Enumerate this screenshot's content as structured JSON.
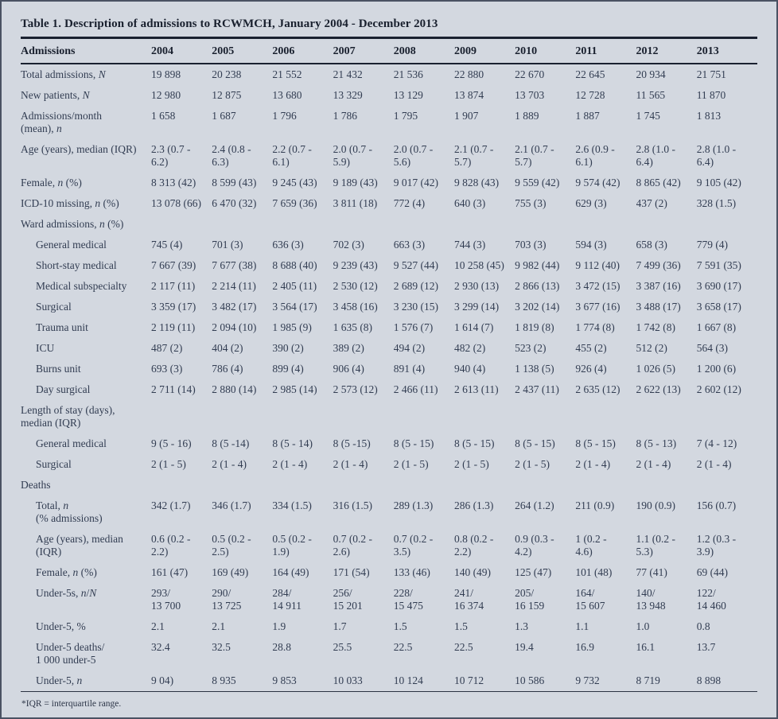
{
  "page": {
    "title": "Table 1. Description of admissions to RCWMCH, January 2004 - December 2013",
    "footnote": "*IQR = interquartile range.",
    "colors": {
      "background": "#d3d8e0",
      "text": "#323d52",
      "rule": "#1a2130"
    }
  },
  "table": {
    "header": [
      "Admissions",
      "2004",
      "2005",
      "2006",
      "2007",
      "2008",
      "2009",
      "2010",
      "2011",
      "2012",
      "2013"
    ],
    "rows": [
      {
        "type": "data",
        "indent": 0,
        "label": "Total admissions, ⟨N⟩",
        "values": [
          "19 898",
          "20 238",
          "21 552",
          "21 432",
          "21 536",
          "22 880",
          "22 670",
          "22 645",
          "20 934",
          "21 751"
        ]
      },
      {
        "type": "data",
        "indent": 0,
        "label": "New patients, ⟨N⟩",
        "values": [
          "12 980",
          "12 875",
          "13 680",
          "13 329",
          "13 129",
          "13 874",
          "13 703",
          "12 728",
          "11 565",
          "11 870"
        ]
      },
      {
        "type": "data",
        "indent": 0,
        "label": "Admissions/month\n(mean), ⟨n⟩",
        "values": [
          "1 658",
          "1 687",
          "1 796",
          "1 786",
          "1 795",
          "1 907",
          "1 889",
          "1 887",
          "1 745",
          "1 813"
        ]
      },
      {
        "type": "data",
        "indent": 0,
        "label": "Age (years), median (IQR)",
        "values": [
          "2.3 (0.7 -\n6.2)",
          "2.4 (0.8 -\n6.3)",
          "2.2 (0.7 -\n6.1)",
          "2.0 (0.7 -\n5.9)",
          "2.0 (0.7 -\n5.6)",
          "2.1 (0.7 -\n5.7)",
          "2.1 (0.7 -\n5.7)",
          "2.6 (0.9 -\n6.1)",
          "2.8 (1.0 -\n6.4)",
          "2.8 (1.0 -\n6.4)"
        ]
      },
      {
        "type": "data",
        "indent": 0,
        "label": "Female, ⟨n⟩ (%)",
        "values": [
          "8 313 (42)",
          "8 599 (43)",
          "9 245 (43)",
          "9 189 (43)",
          "9 017 (42)",
          "9 828 (43)",
          "9 559 (42)",
          "9 574 (42)",
          "8 865 (42)",
          "9 105 (42)"
        ]
      },
      {
        "type": "data",
        "indent": 0,
        "label": "ICD-10 missing, ⟨n⟩ (%)",
        "values": [
          "13 078 (66)",
          "6 470 (32)",
          "7 659 (36)",
          "3 811 (18)",
          "772 (4)",
          "640 (3)",
          "755 (3)",
          "629 (3)",
          "437 (2)",
          "328 (1.5)"
        ]
      },
      {
        "type": "section",
        "indent": 0,
        "label": "Ward admissions, ⟨n⟩ (%)"
      },
      {
        "type": "data",
        "indent": 1,
        "label": "General medical",
        "values": [
          "745 (4)",
          "701 (3)",
          "636 (3)",
          "702 (3)",
          "663 (3)",
          "744 (3)",
          "703 (3)",
          "594 (3)",
          "658 (3)",
          "779 (4)"
        ]
      },
      {
        "type": "data",
        "indent": 1,
        "label": "Short-stay medical",
        "values": [
          "7 667 (39)",
          "7 677 (38)",
          "8 688 (40)",
          "9 239 (43)",
          "9 527 (44)",
          "10 258 (45)",
          "9 982 (44)",
          "9 112 (40)",
          "7 499 (36)",
          "7 591 (35)"
        ]
      },
      {
        "type": "data",
        "indent": 1,
        "label": "Medical subspecialty",
        "values": [
          "2 117 (11)",
          "2 214 (11)",
          "2 405 (11)",
          "2 530 (12)",
          "2 689 (12)",
          "2 930 (13)",
          "2 866 (13)",
          "3 472 (15)",
          "3 387 (16)",
          "3 690 (17)"
        ]
      },
      {
        "type": "data",
        "indent": 1,
        "label": "Surgical",
        "values": [
          "3 359 (17)",
          "3 482 (17)",
          "3 564 (17)",
          "3 458 (16)",
          "3 230 (15)",
          "3 299 (14)",
          "3 202 (14)",
          "3 677 (16)",
          "3 488 (17)",
          "3 658 (17)"
        ]
      },
      {
        "type": "data",
        "indent": 1,
        "label": "Trauma unit",
        "values": [
          "2 119 (11)",
          "2 094 (10)",
          "1 985 (9)",
          "1 635 (8)",
          "1 576 (7)",
          "1 614 (7)",
          "1 819 (8)",
          "1 774 (8)",
          "1 742 (8)",
          "1 667 (8)"
        ]
      },
      {
        "type": "data",
        "indent": 1,
        "label": "ICU",
        "values": [
          "487 (2)",
          "404 (2)",
          "390 (2)",
          "389 (2)",
          "494 (2)",
          "482 (2)",
          "523 (2)",
          "455 (2)",
          "512 (2)",
          "564 (3)"
        ]
      },
      {
        "type": "data",
        "indent": 1,
        "label": "Burns unit",
        "values": [
          "693 (3)",
          "786 (4)",
          "899 (4)",
          "906 (4)",
          "891 (4)",
          "940 (4)",
          "1 138 (5)",
          "926 (4)",
          "1 026 (5)",
          "1 200 (6)"
        ]
      },
      {
        "type": "data",
        "indent": 1,
        "label": "Day surgical",
        "values": [
          "2 711 (14)",
          "2 880 (14)",
          "2 985 (14)",
          "2 573 (12)",
          "2 466 (11)",
          "2 613 (11)",
          "2 437 (11)",
          "2 635 (12)",
          "2 622 (13)",
          "2 602 (12)"
        ]
      },
      {
        "type": "section",
        "indent": 0,
        "label": "Length of stay (days),\nmedian (IQR)"
      },
      {
        "type": "data",
        "indent": 1,
        "label": "General medical",
        "values": [
          "9 (5 - 16)",
          "8 (5 -14)",
          "8 (5 - 14)",
          "8 (5 -15)",
          "8 (5 - 15)",
          "8 (5 - 15)",
          "8 (5 - 15)",
          "8 (5 - 15)",
          "8 (5 - 13)",
          "7 (4 - 12)"
        ]
      },
      {
        "type": "data",
        "indent": 1,
        "label": "Surgical",
        "values": [
          "2 (1 - 5)",
          "2 (1 - 4)",
          "2 (1 - 4)",
          "2 (1 - 4)",
          "2 (1 - 5)",
          "2 (1 - 5)",
          "2 (1 - 5)",
          "2 (1 - 4)",
          "2 (1 - 4)",
          "2 (1 - 4)"
        ]
      },
      {
        "type": "section",
        "indent": 0,
        "label": "Deaths"
      },
      {
        "type": "data",
        "indent": 1,
        "label": "Total, ⟨n⟩\n(% admissions)",
        "values": [
          "342 (1.7)",
          "346 (1.7)",
          "334 (1.5)",
          "316 (1.5)",
          "289 (1.3)",
          "286 (1.3)",
          "264 (1.2)",
          "211 (0.9)",
          "190 (0.9)",
          "156 (0.7)"
        ]
      },
      {
        "type": "data",
        "indent": 1,
        "label": "Age (years), median\n(IQR)",
        "values": [
          "0.6 (0.2 -\n2.2)",
          "0.5 (0.2 -\n2.5)",
          "0.5 (0.2 -\n1.9)",
          "0.7 (0.2 -\n2.6)",
          "0.7 (0.2 -\n3.5)",
          "0.8 (0.2 -\n2.2)",
          "0.9 (0.3 -\n4.2)",
          "1 (0.2 -\n4.6)",
          "1.1 (0.2 -\n5.3)",
          "1.2 (0.3 -\n3.9)"
        ]
      },
      {
        "type": "data",
        "indent": 1,
        "label": "Female, ⟨n⟩ (%)",
        "values": [
          "161 (47)",
          "169 (49)",
          "164 (49)",
          "171 (54)",
          "133 (46)",
          "140 (49)",
          "125 (47)",
          "101 (48)",
          "77 (41)",
          "69 (44)"
        ]
      },
      {
        "type": "data",
        "indent": 1,
        "label": "Under-5s, ⟨n⟩/⟨N⟩",
        "values": [
          "293/\n13 700",
          "290/\n13 725",
          "284/\n14 911",
          "256/\n15 201",
          "228/\n15 475",
          "241/\n16 374",
          "205/\n16 159",
          "164/\n15 607",
          "140/\n13 948",
          "122/\n14 460"
        ]
      },
      {
        "type": "data",
        "indent": 1,
        "label": "Under-5, %",
        "values": [
          "2.1",
          "2.1",
          "1.9",
          "1.7",
          "1.5",
          "1.5",
          "1.3",
          "1.1",
          "1.0",
          "0.8"
        ]
      },
      {
        "type": "data",
        "indent": 1,
        "label": "Under-5 deaths/\n1 000 under-5",
        "values": [
          "32.4",
          "32.5",
          "28.8",
          "25.5",
          "22.5",
          "22.5",
          "19.4",
          "16.9",
          "16.1",
          "13.7"
        ]
      },
      {
        "type": "data",
        "indent": 1,
        "label": "Under-5, ⟨n⟩",
        "values": [
          "9 04)",
          "8 935",
          "9 853",
          "10 033",
          "10 124",
          "10 712",
          "10 586",
          "9 732",
          "8 719",
          "8 898"
        ]
      }
    ]
  }
}
